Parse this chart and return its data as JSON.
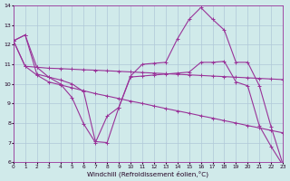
{
  "xlabel": "Windchill (Refroidissement éolien,°C)",
  "xlim": [
    0,
    23
  ],
  "ylim": [
    6,
    14
  ],
  "xticks": [
    0,
    1,
    2,
    3,
    4,
    5,
    6,
    7,
    8,
    9,
    10,
    11,
    12,
    13,
    14,
    15,
    16,
    17,
    18,
    19,
    20,
    21,
    22,
    23
  ],
  "yticks": [
    6,
    7,
    8,
    9,
    10,
    11,
    12,
    13,
    14
  ],
  "background_color": "#d0eaea",
  "grid_color": "#b0c8d8",
  "line_color": "#993399",
  "series": [
    {
      "x": [
        0,
        1,
        2,
        3,
        4,
        5,
        6,
        7,
        8,
        9,
        10,
        11,
        12,
        13,
        14,
        15,
        16,
        17,
        18,
        19,
        20,
        21,
        22,
        23
      ],
      "y": [
        12.2,
        12.5,
        10.5,
        10.35,
        10.0,
        9.3,
        7.95,
        7.0,
        8.35,
        8.8,
        10.4,
        11.0,
        11.05,
        11.1,
        12.3,
        13.3,
        13.9,
        13.3,
        12.75,
        11.1,
        11.1,
        9.9,
        7.8,
        5.9
      ]
    },
    {
      "x": [
        0,
        1,
        2,
        3,
        4,
        5,
        6,
        7,
        8,
        9,
        10,
        11,
        12,
        13,
        14,
        15,
        16,
        17,
        18,
        19,
        20,
        21,
        22,
        23
      ],
      "y": [
        12.2,
        12.5,
        10.85,
        10.35,
        10.2,
        10.0,
        9.6,
        7.05,
        7.0,
        8.8,
        10.35,
        10.4,
        10.45,
        10.5,
        10.55,
        10.6,
        11.1,
        11.1,
        11.15,
        10.1,
        9.9,
        7.85,
        6.8,
        5.85
      ]
    },
    {
      "x": [
        0,
        1,
        2,
        3,
        4,
        5,
        6,
        7,
        8,
        9,
        10,
        11,
        12,
        13,
        14,
        15,
        16,
        17,
        18,
        19,
        20,
        21,
        22,
        23
      ],
      "y": [
        12.2,
        10.9,
        10.85,
        10.8,
        10.78,
        10.75,
        10.72,
        10.7,
        10.67,
        10.64,
        10.61,
        10.58,
        10.55,
        10.52,
        10.49,
        10.46,
        10.43,
        10.4,
        10.37,
        10.34,
        10.31,
        10.28,
        10.25,
        10.22
      ]
    },
    {
      "x": [
        0,
        1,
        2,
        3,
        4,
        5,
        6,
        7,
        8,
        9,
        10,
        11,
        12,
        13,
        14,
        15,
        16,
        17,
        18,
        19,
        20,
        21,
        22,
        23
      ],
      "y": [
        12.2,
        10.9,
        10.45,
        10.1,
        9.95,
        9.8,
        9.65,
        9.5,
        9.38,
        9.25,
        9.12,
        9.0,
        8.87,
        8.74,
        8.62,
        8.5,
        8.37,
        8.25,
        8.12,
        8.0,
        7.87,
        7.75,
        7.62,
        7.5
      ]
    }
  ]
}
